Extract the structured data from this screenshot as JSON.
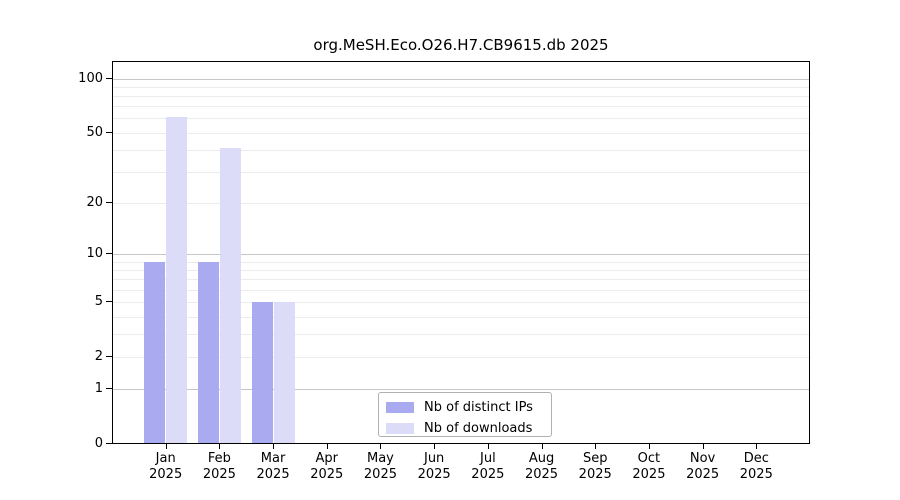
{
  "title": "org.MeSH.Eco.O26.H7.CB9615.db 2025",
  "chart_data": {
    "type": "bar",
    "title": "org.MeSH.Eco.O26.H7.CB9615.db 2025",
    "x_month_labels": [
      "Jan",
      "Feb",
      "Mar",
      "Apr",
      "May",
      "Jun",
      "Jul",
      "Aug",
      "Sep",
      "Oct",
      "Nov",
      "Dec"
    ],
    "x_year_label": "2025",
    "series": [
      {
        "name": "Nb of distinct IPs",
        "color": "#aaaaf0",
        "values": [
          9,
          9,
          5,
          0,
          0,
          0,
          0,
          0,
          0,
          0,
          0,
          0
        ]
      },
      {
        "name": "Nb of downloads",
        "color": "#dcdcf8",
        "values": [
          61,
          41,
          5,
          0,
          0,
          0,
          0,
          0,
          0,
          0,
          0,
          0
        ]
      }
    ],
    "y_scale": "log10(1+v)",
    "ylim": [
      0,
      125
    ],
    "y_tick_values": [
      0,
      1,
      2,
      5,
      10,
      20,
      50,
      100
    ],
    "y_tick_labels": [
      "0",
      "1",
      "2",
      "5",
      "10",
      "20",
      "50",
      "100"
    ],
    "y_major_gridlines": [
      1,
      10,
      100
    ],
    "y_minor_gridlines": [
      2,
      3,
      4,
      5,
      6,
      7,
      8,
      9,
      20,
      30,
      40,
      50,
      60,
      70,
      80,
      90
    ],
    "grid": true,
    "legend_position": "lower center",
    "legend_labels": [
      "Nb of distinct IPs",
      "Nb of downloads"
    ]
  },
  "colors": {
    "distinct_ips_bar": "#aaaaf0",
    "downloads_bar": "#dcdcf8",
    "major_gridline": "#c6c6c6",
    "minor_gridline": "#ececec",
    "spine": "#000000",
    "legend_border": "#b0b0b0",
    "background": "#ffffff"
  }
}
